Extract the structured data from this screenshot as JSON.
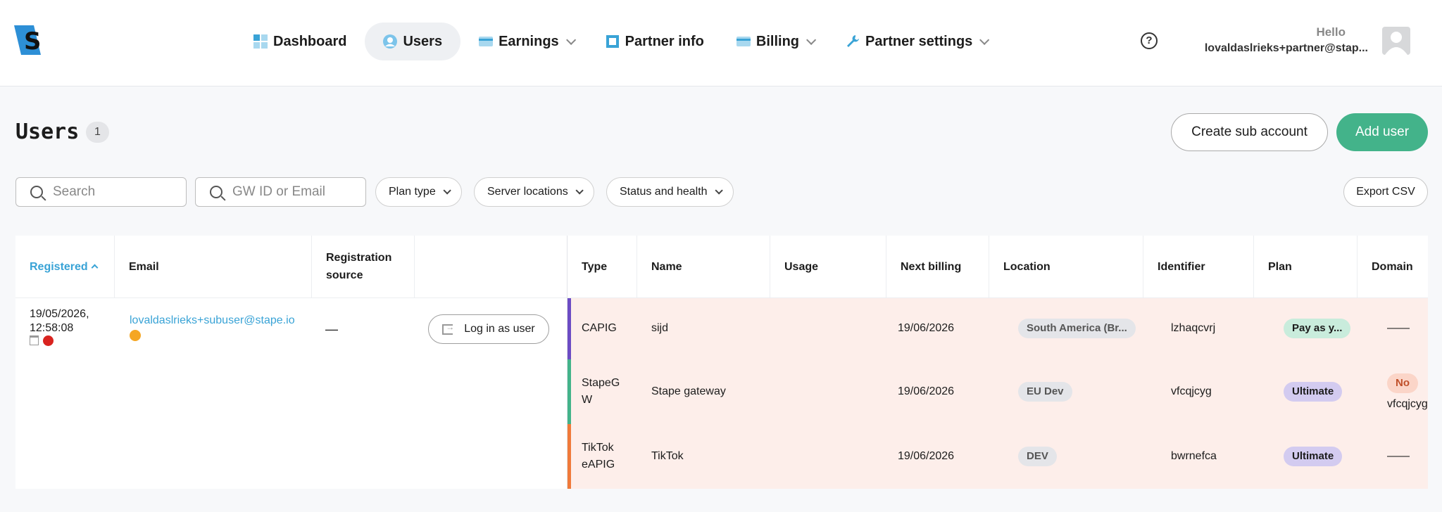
{
  "header": {
    "logo": "S",
    "nav": [
      {
        "label": "Dashboard",
        "icon": "dashboard-icon",
        "has_menu": false
      },
      {
        "label": "Users",
        "icon": "user-icon",
        "has_menu": false,
        "active": true
      },
      {
        "label": "Earnings",
        "icon": "card-icon",
        "has_menu": true
      },
      {
        "label": "Partner info",
        "icon": "square-icon",
        "has_menu": false
      },
      {
        "label": "Billing",
        "icon": "card-icon",
        "has_menu": true
      },
      {
        "label": "Partner settings",
        "icon": "wrench-icon",
        "has_menu": true
      }
    ],
    "help": "?",
    "hello": "Hello",
    "account": "lovaldaslrieks+partner@stap..."
  },
  "page": {
    "title": "Users",
    "count": "1",
    "create_sub": "Create sub account",
    "add_user": "Add user"
  },
  "filters": {
    "search_placeholder": "Search",
    "gw_placeholder": "GW ID or Email",
    "plan_type": "Plan type",
    "server_locations": "Server locations",
    "status_health": "Status and health",
    "export": "Export CSV"
  },
  "table": {
    "headers": {
      "registered": "Registered",
      "email": "Email",
      "registration_source": "Registration source",
      "type": "Type",
      "name": "Name",
      "usage": "Usage",
      "next_billing": "Next billing",
      "location": "Location",
      "identifier": "Identifier",
      "plan": "Plan",
      "domain": "Domain"
    },
    "user": {
      "registered": "19/05/2026,\n12:58:08",
      "email": "lovaldaslrieks+subuser@stape.io",
      "source": "—",
      "login": "Log in as user"
    },
    "rows": [
      {
        "type": "CAPIG",
        "name": "sijd",
        "usage": "",
        "next_billing": "19/06/2026",
        "location": "South America (Br...",
        "identifier": "lzhaqcvrj",
        "plan": "Pay as y...",
        "plan_style": "green",
        "domain": "——",
        "bar_color": "#6c4cc4"
      },
      {
        "type": "StapeG\nW",
        "name": "Stape gateway",
        "usage": "",
        "next_billing": "19/06/2026",
        "location": "EU Dev",
        "identifier": "vfcqjcyg",
        "plan": "Ultimate",
        "plan_style": "purple",
        "domain": "No",
        "domain_sub": "vfcqjcygigs",
        "bar_color": "#43b38a"
      },
      {
        "type": "TikTok\neAPIG",
        "name": "TikTok",
        "usage": "",
        "next_billing": "19/06/2026",
        "location": "DEV",
        "identifier": "bwrnefca",
        "plan": "Ultimate",
        "plan_style": "purple",
        "domain": "——",
        "bar_color": "#f07a3a"
      }
    ]
  },
  "colors": {
    "accent_green": "#43b38a",
    "accent_blue": "#39a3d6",
    "row_bg": "#fdeeea"
  }
}
